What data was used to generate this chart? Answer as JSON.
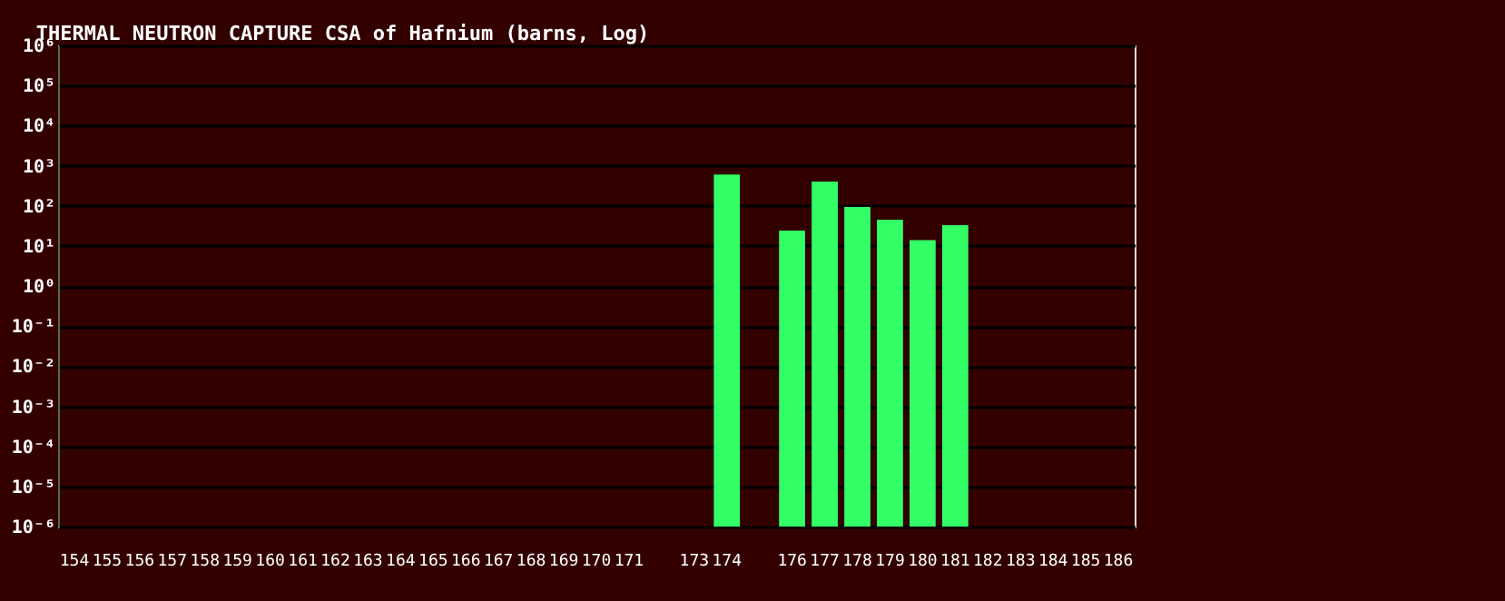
{
  "chart_data": {
    "type": "bar",
    "title": "THERMAL NEUTRON CAPTURE CSA of Hafnium (barns, Log)",
    "categories": [
      "154",
      "155",
      "156",
      "157",
      "158",
      "159",
      "160",
      "161",
      "162",
      "163",
      "164",
      "165",
      "166",
      "167",
      "168",
      "169",
      "170",
      "171",
      null,
      "173",
      "174",
      null,
      "176",
      "177",
      "178",
      "179",
      "180",
      "181",
      "182",
      "183",
      "184",
      "185",
      "186"
    ],
    "values": [
      null,
      null,
      null,
      null,
      null,
      null,
      null,
      null,
      null,
      null,
      null,
      null,
      null,
      null,
      null,
      null,
      null,
      null,
      null,
      null,
      600,
      null,
      24,
      400,
      93,
      45,
      14,
      33,
      null,
      null,
      null,
      null,
      null
    ],
    "color": "#33ff66",
    "log": true,
    "ylim": [
      1e-06,
      1000000.0
    ],
    "yticks": [
      {
        "value": 1e-06,
        "label": "10⁻⁶"
      },
      {
        "value": 1e-05,
        "label": "10⁻⁵"
      },
      {
        "value": 0.0001,
        "label": "10⁻⁴"
      },
      {
        "value": 0.001,
        "label": "10⁻³"
      },
      {
        "value": 0.01,
        "label": "10⁻²"
      },
      {
        "value": 0.1,
        "label": "10⁻¹"
      },
      {
        "value": 1,
        "label": "10⁰"
      },
      {
        "value": 10,
        "label": "10¹"
      },
      {
        "value": 100,
        "label": "10²"
      },
      {
        "value": 1000,
        "label": "10³"
      },
      {
        "value": 10000,
        "label": "10⁴"
      },
      {
        "value": 100000,
        "label": "10⁵"
      },
      {
        "value": 1000000,
        "label": "10⁶"
      }
    ],
    "grid": "y"
  }
}
